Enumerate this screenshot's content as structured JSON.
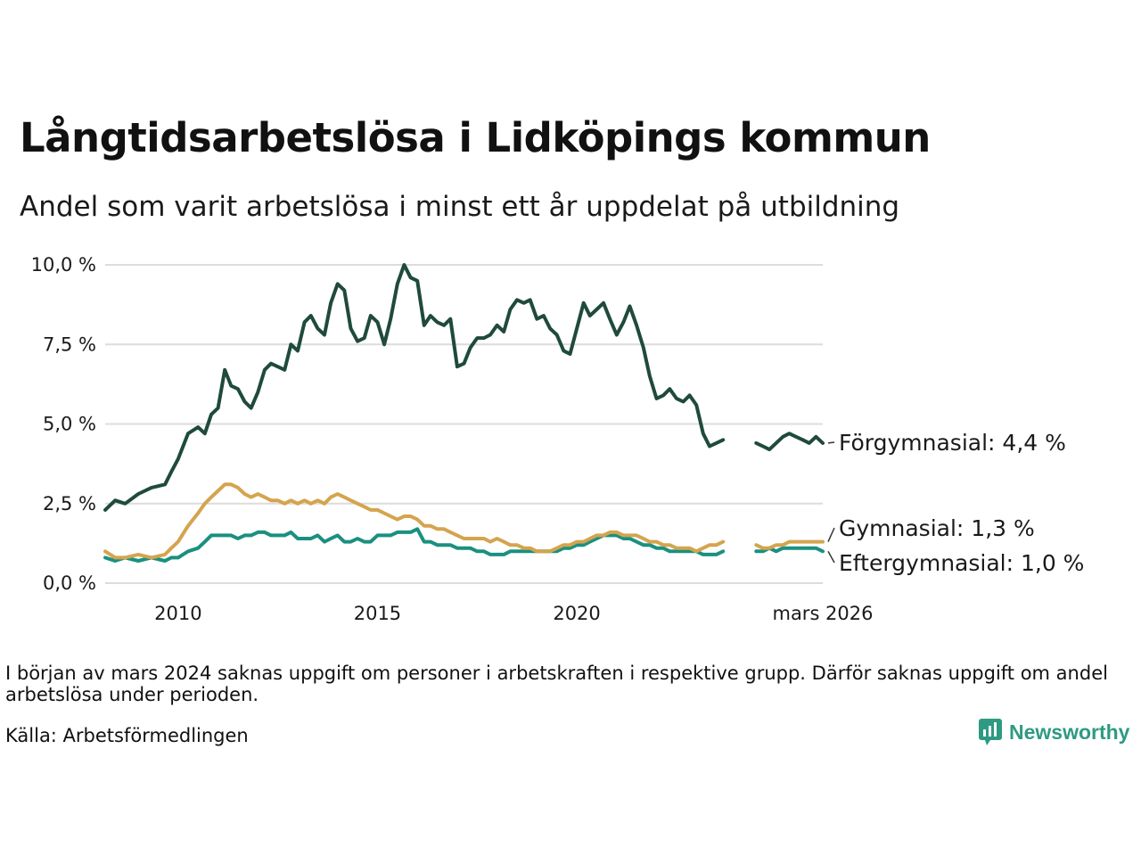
{
  "header": {
    "title": "Långtidsarbetslösa i Lidköpings kommun",
    "subtitle": "Andel som varit arbetslösa i minst ett år uppdelat på utbildning"
  },
  "footer": {
    "note": "I början av mars 2024 saknas uppgift om personer i arbetskraften i respektive grupp. Därför saknas uppgift om andel arbetslösa under perioden.",
    "source": "Källa: Arbetsförmedlingen",
    "brand": "Newsworthy"
  },
  "chart_data": {
    "type": "line",
    "title": "Långtidsarbetslösa i Lidköpings kommun",
    "subtitle": "Andel som varit arbetslösa i minst ett år uppdelat på utbildning",
    "xlabel": "",
    "ylabel": "",
    "x_unit": "year (decimal)",
    "xlim": [
      2008.17,
      2026.17
    ],
    "ylim": [
      0,
      10
    ],
    "x_ticks": [
      {
        "value": 2010,
        "label": "2010"
      },
      {
        "value": 2015,
        "label": "2015"
      },
      {
        "value": 2020,
        "label": "2020"
      },
      {
        "value": 2026.17,
        "label": "mars 2026"
      }
    ],
    "y_ticks": [
      {
        "value": 0,
        "label": "0,0 %"
      },
      {
        "value": 2.5,
        "label": "2,5 %"
      },
      {
        "value": 5,
        "label": "5,0 %"
      },
      {
        "value": 7.5,
        "label": "7,5 %"
      },
      {
        "value": 10,
        "label": "10,0 %"
      }
    ],
    "grid": "horizontal",
    "gap": {
      "from": 2023.75,
      "to": 2024.5
    },
    "series": [
      {
        "name": "Förgymnasial",
        "label": "Förgymnasial: 4,4 %",
        "color": "#1f4a3c",
        "x": [
          2008.17,
          2008.42,
          2008.67,
          2009.0,
          2009.33,
          2009.67,
          2009.83,
          2010.0,
          2010.25,
          2010.5,
          2010.67,
          2010.83,
          2011.0,
          2011.17,
          2011.33,
          2011.5,
          2011.67,
          2011.83,
          2012.0,
          2012.17,
          2012.33,
          2012.5,
          2012.67,
          2012.83,
          2013.0,
          2013.17,
          2013.33,
          2013.5,
          2013.67,
          2013.83,
          2014.0,
          2014.17,
          2014.33,
          2014.5,
          2014.67,
          2014.83,
          2015.0,
          2015.17,
          2015.33,
          2015.5,
          2015.67,
          2015.83,
          2016.0,
          2016.17,
          2016.33,
          2016.5,
          2016.67,
          2016.83,
          2017.0,
          2017.17,
          2017.33,
          2017.5,
          2017.67,
          2017.83,
          2018.0,
          2018.17,
          2018.33,
          2018.5,
          2018.67,
          2018.83,
          2019.0,
          2019.17,
          2019.33,
          2019.5,
          2019.67,
          2019.83,
          2020.0,
          2020.17,
          2020.33,
          2020.5,
          2020.67,
          2020.83,
          2021.0,
          2021.17,
          2021.33,
          2021.5,
          2021.67,
          2021.83,
          2022.0,
          2022.17,
          2022.33,
          2022.5,
          2022.67,
          2022.83,
          2023.0,
          2023.17,
          2023.33,
          2023.5,
          2023.67,
          2024.5,
          2024.67,
          2024.83,
          2025.0,
          2025.17,
          2025.33,
          2025.5,
          2025.67,
          2025.83,
          2026.0,
          2026.17
        ],
        "y": [
          2.3,
          2.6,
          2.5,
          2.8,
          3.0,
          3.1,
          3.5,
          3.9,
          4.7,
          4.9,
          4.7,
          5.3,
          5.5,
          6.7,
          6.2,
          6.1,
          5.7,
          5.5,
          6.0,
          6.7,
          6.9,
          6.8,
          6.7,
          7.5,
          7.3,
          8.2,
          8.4,
          8.0,
          7.8,
          8.8,
          9.4,
          9.2,
          8.0,
          7.6,
          7.7,
          8.4,
          8.2,
          7.5,
          8.3,
          9.4,
          10.0,
          9.6,
          9.5,
          8.1,
          8.4,
          8.2,
          8.1,
          8.3,
          6.8,
          6.9,
          7.4,
          7.7,
          7.7,
          7.8,
          8.1,
          7.9,
          8.6,
          8.9,
          8.8,
          8.9,
          8.3,
          8.4,
          8.0,
          7.8,
          7.3,
          7.2,
          8.0,
          8.8,
          8.4,
          8.6,
          8.8,
          8.3,
          7.8,
          8.2,
          8.7,
          8.1,
          7.4,
          6.5,
          5.8,
          5.9,
          6.1,
          5.8,
          5.7,
          5.9,
          5.6,
          4.7,
          4.3,
          4.4,
          4.5,
          4.4,
          4.3,
          4.2,
          4.4,
          4.6,
          4.7,
          4.6,
          4.5,
          4.4,
          4.6,
          4.4
        ]
      },
      {
        "name": "Gymnasial",
        "label": "Gymnasial: 1,3 %",
        "color": "#d4a44e",
        "x": [
          2008.17,
          2008.42,
          2008.67,
          2009.0,
          2009.33,
          2009.67,
          2009.83,
          2010.0,
          2010.25,
          2010.5,
          2010.67,
          2010.83,
          2011.0,
          2011.17,
          2011.33,
          2011.5,
          2011.67,
          2011.83,
          2012.0,
          2012.17,
          2012.33,
          2012.5,
          2012.67,
          2012.83,
          2013.0,
          2013.17,
          2013.33,
          2013.5,
          2013.67,
          2013.83,
          2014.0,
          2014.17,
          2014.33,
          2014.5,
          2014.67,
          2014.83,
          2015.0,
          2015.17,
          2015.33,
          2015.5,
          2015.67,
          2015.83,
          2016.0,
          2016.17,
          2016.33,
          2016.5,
          2016.67,
          2016.83,
          2017.0,
          2017.17,
          2017.33,
          2017.5,
          2017.67,
          2017.83,
          2018.0,
          2018.17,
          2018.33,
          2018.5,
          2018.67,
          2018.83,
          2019.0,
          2019.17,
          2019.33,
          2019.5,
          2019.67,
          2019.83,
          2020.0,
          2020.17,
          2020.33,
          2020.5,
          2020.67,
          2020.83,
          2021.0,
          2021.17,
          2021.33,
          2021.5,
          2021.67,
          2021.83,
          2022.0,
          2022.17,
          2022.33,
          2022.5,
          2022.67,
          2022.83,
          2023.0,
          2023.17,
          2023.33,
          2023.5,
          2023.67,
          2024.5,
          2024.67,
          2024.83,
          2025.0,
          2025.17,
          2025.33,
          2025.5,
          2025.67,
          2025.83,
          2026.0,
          2026.17
        ],
        "y": [
          1.0,
          0.8,
          0.8,
          0.9,
          0.8,
          0.9,
          1.1,
          1.3,
          1.8,
          2.2,
          2.5,
          2.7,
          2.9,
          3.1,
          3.1,
          3.0,
          2.8,
          2.7,
          2.8,
          2.7,
          2.6,
          2.6,
          2.5,
          2.6,
          2.5,
          2.6,
          2.5,
          2.6,
          2.5,
          2.7,
          2.8,
          2.7,
          2.6,
          2.5,
          2.4,
          2.3,
          2.3,
          2.2,
          2.1,
          2.0,
          2.1,
          2.1,
          2.0,
          1.8,
          1.8,
          1.7,
          1.7,
          1.6,
          1.5,
          1.4,
          1.4,
          1.4,
          1.4,
          1.3,
          1.4,
          1.3,
          1.2,
          1.2,
          1.1,
          1.1,
          1.0,
          1.0,
          1.0,
          1.1,
          1.2,
          1.2,
          1.3,
          1.3,
          1.4,
          1.5,
          1.5,
          1.6,
          1.6,
          1.5,
          1.5,
          1.5,
          1.4,
          1.3,
          1.3,
          1.2,
          1.2,
          1.1,
          1.1,
          1.1,
          1.0,
          1.1,
          1.2,
          1.2,
          1.3,
          1.2,
          1.1,
          1.1,
          1.2,
          1.2,
          1.3,
          1.3,
          1.3,
          1.3,
          1.3,
          1.3
        ]
      },
      {
        "name": "Eftergymnasial",
        "label": "Eftergymnasial: 1,0 %",
        "color": "#1a9080",
        "x": [
          2008.17,
          2008.42,
          2008.67,
          2009.0,
          2009.33,
          2009.67,
          2009.83,
          2010.0,
          2010.25,
          2010.5,
          2010.67,
          2010.83,
          2011.0,
          2011.17,
          2011.33,
          2011.5,
          2011.67,
          2011.83,
          2012.0,
          2012.17,
          2012.33,
          2012.5,
          2012.67,
          2012.83,
          2013.0,
          2013.17,
          2013.33,
          2013.5,
          2013.67,
          2013.83,
          2014.0,
          2014.17,
          2014.33,
          2014.5,
          2014.67,
          2014.83,
          2015.0,
          2015.17,
          2015.33,
          2015.5,
          2015.67,
          2015.83,
          2016.0,
          2016.17,
          2016.33,
          2016.5,
          2016.67,
          2016.83,
          2017.0,
          2017.17,
          2017.33,
          2017.5,
          2017.67,
          2017.83,
          2018.0,
          2018.17,
          2018.33,
          2018.5,
          2018.67,
          2018.83,
          2019.0,
          2019.17,
          2019.33,
          2019.5,
          2019.67,
          2019.83,
          2020.0,
          2020.17,
          2020.33,
          2020.5,
          2020.67,
          2020.83,
          2021.0,
          2021.17,
          2021.33,
          2021.5,
          2021.67,
          2021.83,
          2022.0,
          2022.17,
          2022.33,
          2022.5,
          2022.67,
          2022.83,
          2023.0,
          2023.17,
          2023.33,
          2023.5,
          2023.67,
          2024.5,
          2024.67,
          2024.83,
          2025.0,
          2025.17,
          2025.33,
          2025.5,
          2025.67,
          2025.83,
          2026.0,
          2026.17
        ],
        "y": [
          0.8,
          0.7,
          0.8,
          0.7,
          0.8,
          0.7,
          0.8,
          0.8,
          1.0,
          1.1,
          1.3,
          1.5,
          1.5,
          1.5,
          1.5,
          1.4,
          1.5,
          1.5,
          1.6,
          1.6,
          1.5,
          1.5,
          1.5,
          1.6,
          1.4,
          1.4,
          1.4,
          1.5,
          1.3,
          1.4,
          1.5,
          1.3,
          1.3,
          1.4,
          1.3,
          1.3,
          1.5,
          1.5,
          1.5,
          1.6,
          1.6,
          1.6,
          1.7,
          1.3,
          1.3,
          1.2,
          1.2,
          1.2,
          1.1,
          1.1,
          1.1,
          1.0,
          1.0,
          0.9,
          0.9,
          0.9,
          1.0,
          1.0,
          1.0,
          1.0,
          1.0,
          1.0,
          1.0,
          1.0,
          1.1,
          1.1,
          1.2,
          1.2,
          1.3,
          1.4,
          1.5,
          1.5,
          1.5,
          1.4,
          1.4,
          1.3,
          1.2,
          1.2,
          1.1,
          1.1,
          1.0,
          1.0,
          1.0,
          1.0,
          1.0,
          0.9,
          0.9,
          0.9,
          1.0,
          1.0,
          1.0,
          1.1,
          1.0,
          1.1,
          1.1,
          1.1,
          1.1,
          1.1,
          1.1,
          1.0
        ]
      }
    ]
  }
}
